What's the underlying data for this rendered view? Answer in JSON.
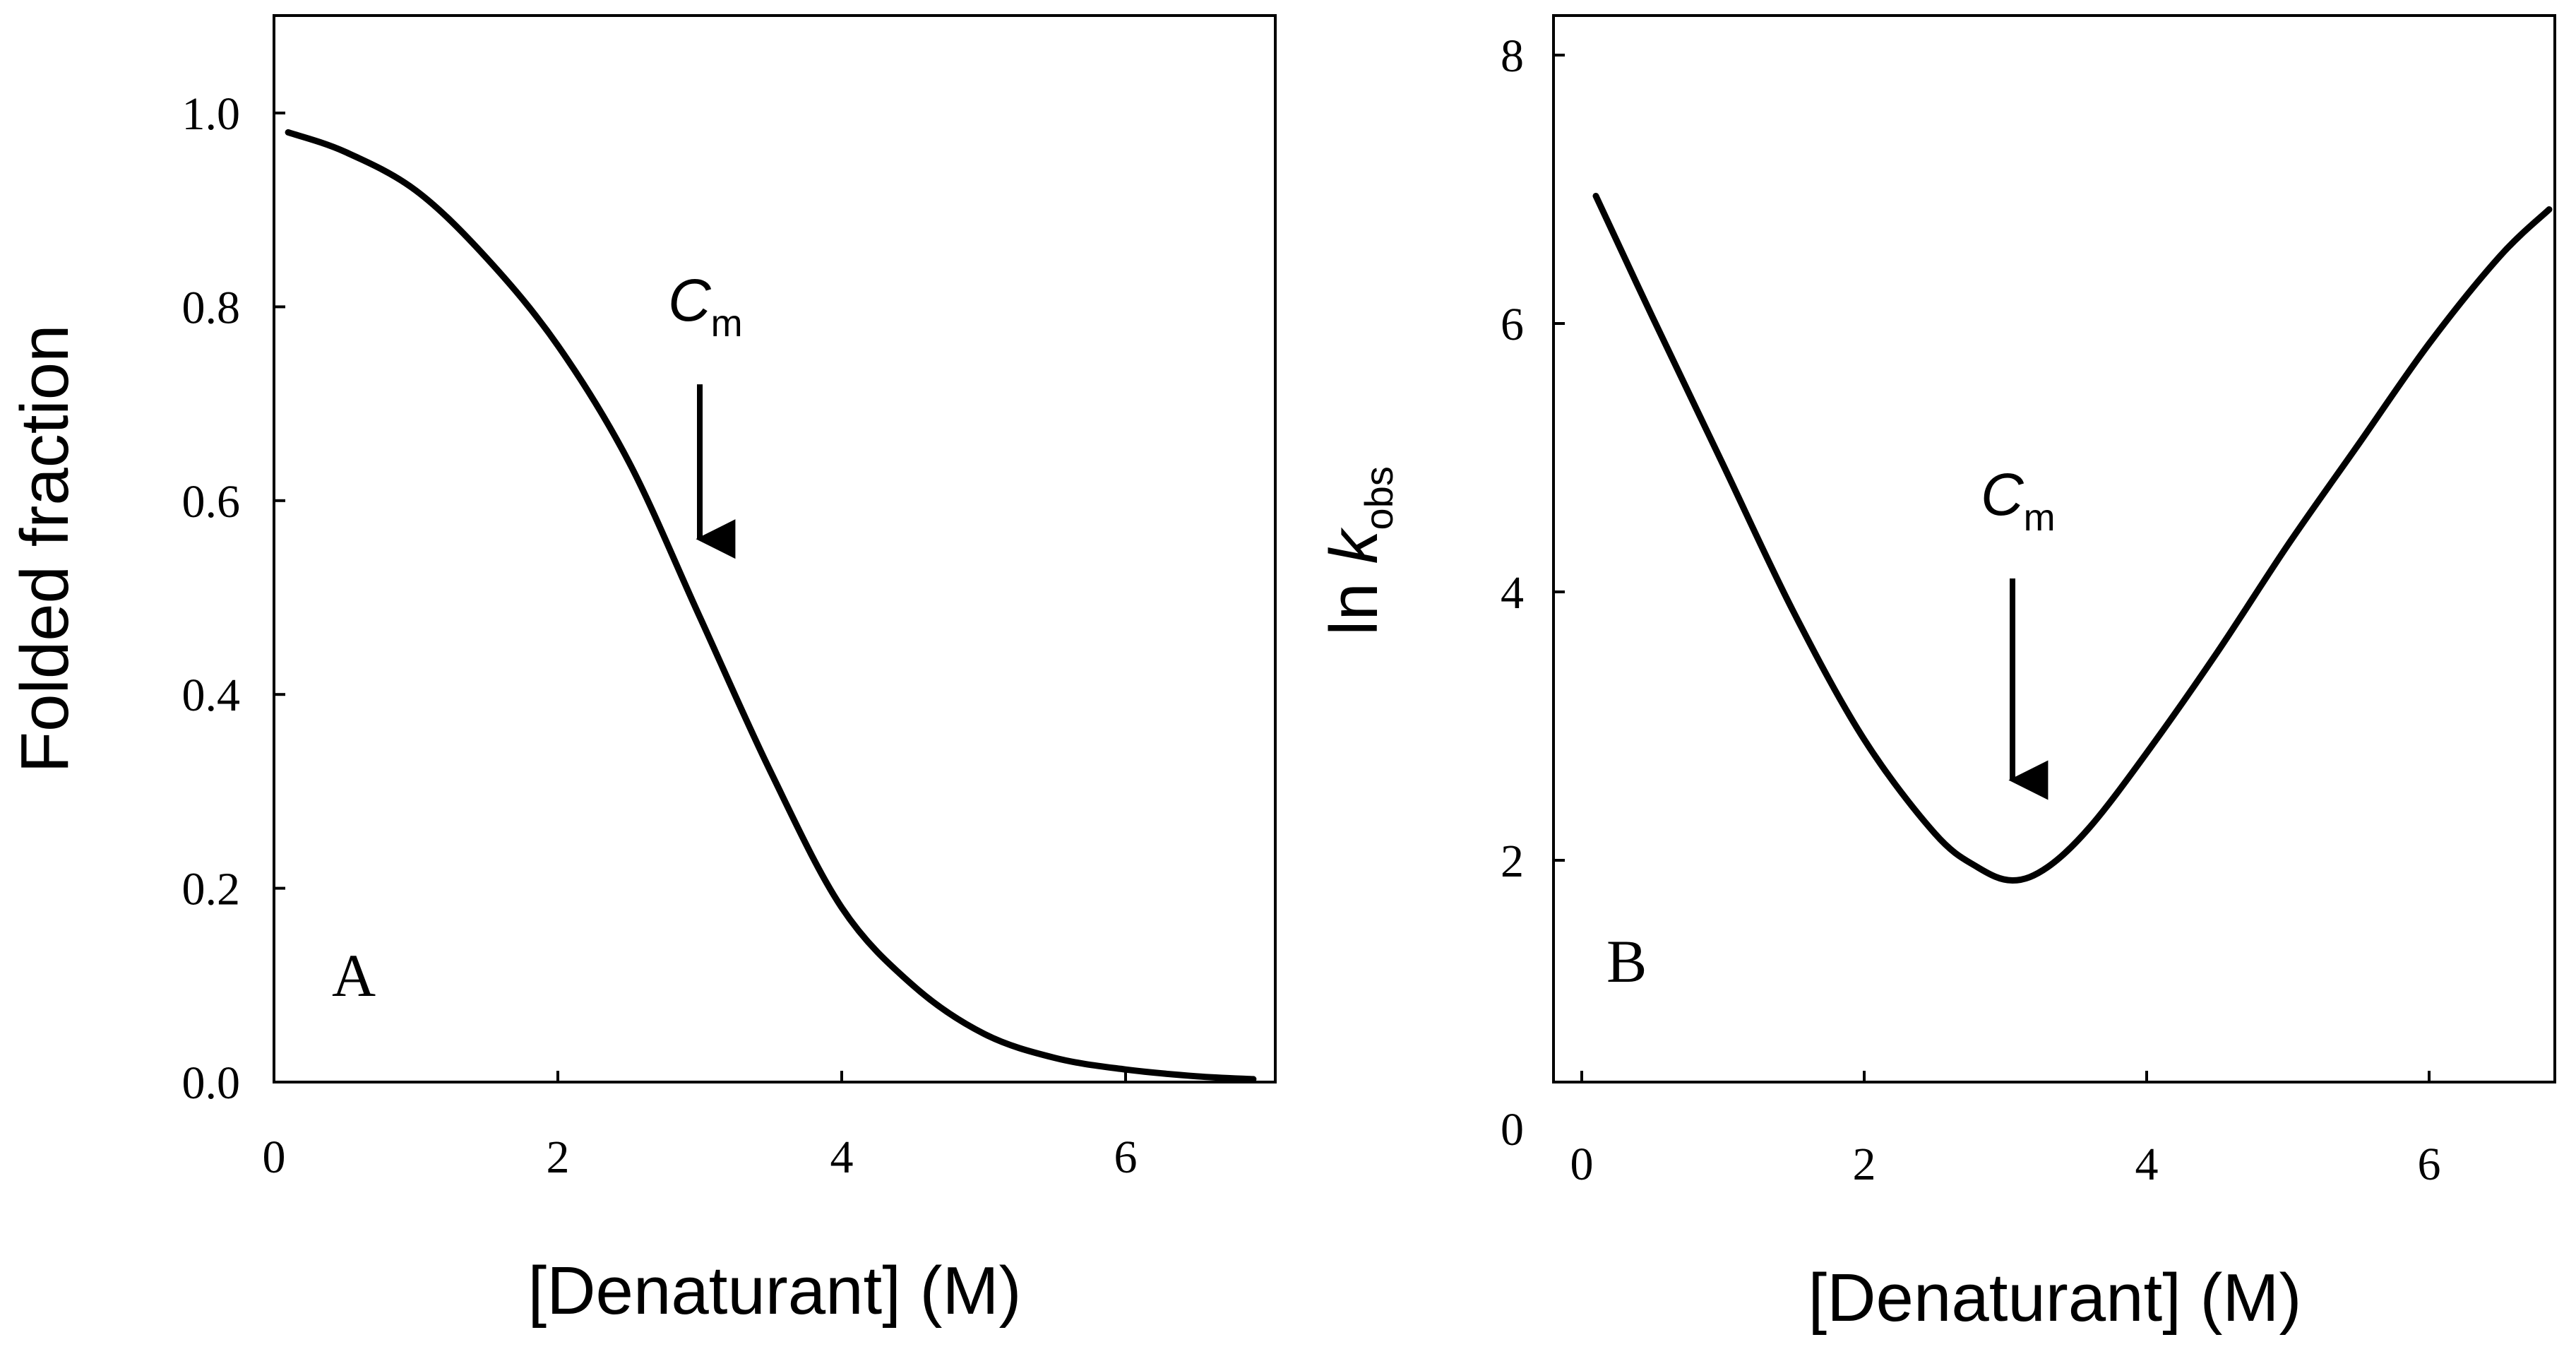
{
  "chart_data": [
    {
      "type": "line",
      "panel": "A",
      "xlabel": "[Denaturant] (M)",
      "ylabel": "Folded fraction",
      "xlim": [
        0,
        7
      ],
      "ylim": [
        0,
        1.1
      ],
      "x_ticks": [
        0,
        2,
        4,
        6
      ],
      "y_ticks": [
        0.0,
        0.2,
        0.4,
        0.6,
        0.8,
        1.0
      ],
      "x_tick_labels": [
        "0",
        "2",
        "4",
        "6"
      ],
      "y_tick_labels": [
        "0.0",
        "0.2",
        "0.4",
        "0.6",
        "0.8",
        "1.0"
      ],
      "series": [
        {
          "name": "folded fraction",
          "x": [
            0.1,
            0.5,
            1.0,
            1.5,
            2.0,
            2.5,
            3.0,
            3.5,
            4.0,
            4.5,
            5.0,
            5.5,
            6.0,
            6.5,
            6.9
          ],
          "y": [
            0.98,
            0.96,
            0.92,
            0.85,
            0.76,
            0.64,
            0.48,
            0.32,
            0.18,
            0.1,
            0.05,
            0.025,
            0.013,
            0.006,
            0.003
          ]
        }
      ],
      "annotation": {
        "text": "C",
        "subscript": "m",
        "x": 3.0,
        "arrow_from_y": 0.72,
        "arrow_to_y": 0.54
      }
    },
    {
      "type": "line",
      "panel": "B",
      "xlabel": "[Denaturant] (M)",
      "ylabel_main": "ln ",
      "ylabel_italic": "k",
      "ylabel_sub": "obs",
      "xlim": [
        0,
        7
      ],
      "ylim": [
        0,
        8
      ],
      "x_ticks": [
        0,
        2,
        4,
        6
      ],
      "y_ticks": [
        0,
        2,
        4,
        6,
        8
      ],
      "x_tick_labels": [
        "0",
        "2",
        "4",
        "6"
      ],
      "y_tick_labels": [
        "0",
        "2",
        "4",
        "6",
        "8"
      ],
      "series": [
        {
          "name": "ln k_obs",
          "x": [
            0.1,
            0.5,
            1.0,
            1.5,
            2.0,
            2.5,
            2.8,
            3.05,
            3.3,
            3.6,
            4.0,
            4.5,
            5.0,
            5.5,
            6.0,
            6.5,
            6.85
          ],
          "y": [
            6.95,
            6.05,
            4.95,
            3.85,
            2.9,
            2.2,
            1.95,
            1.85,
            1.95,
            2.25,
            2.8,
            3.55,
            4.35,
            5.1,
            5.85,
            6.5,
            6.85
          ]
        }
      ],
      "annotation": {
        "text": "C",
        "subscript": "m",
        "x": 3.05,
        "arrow_from_y": 4.1,
        "arrow_to_y": 2.45
      }
    }
  ]
}
